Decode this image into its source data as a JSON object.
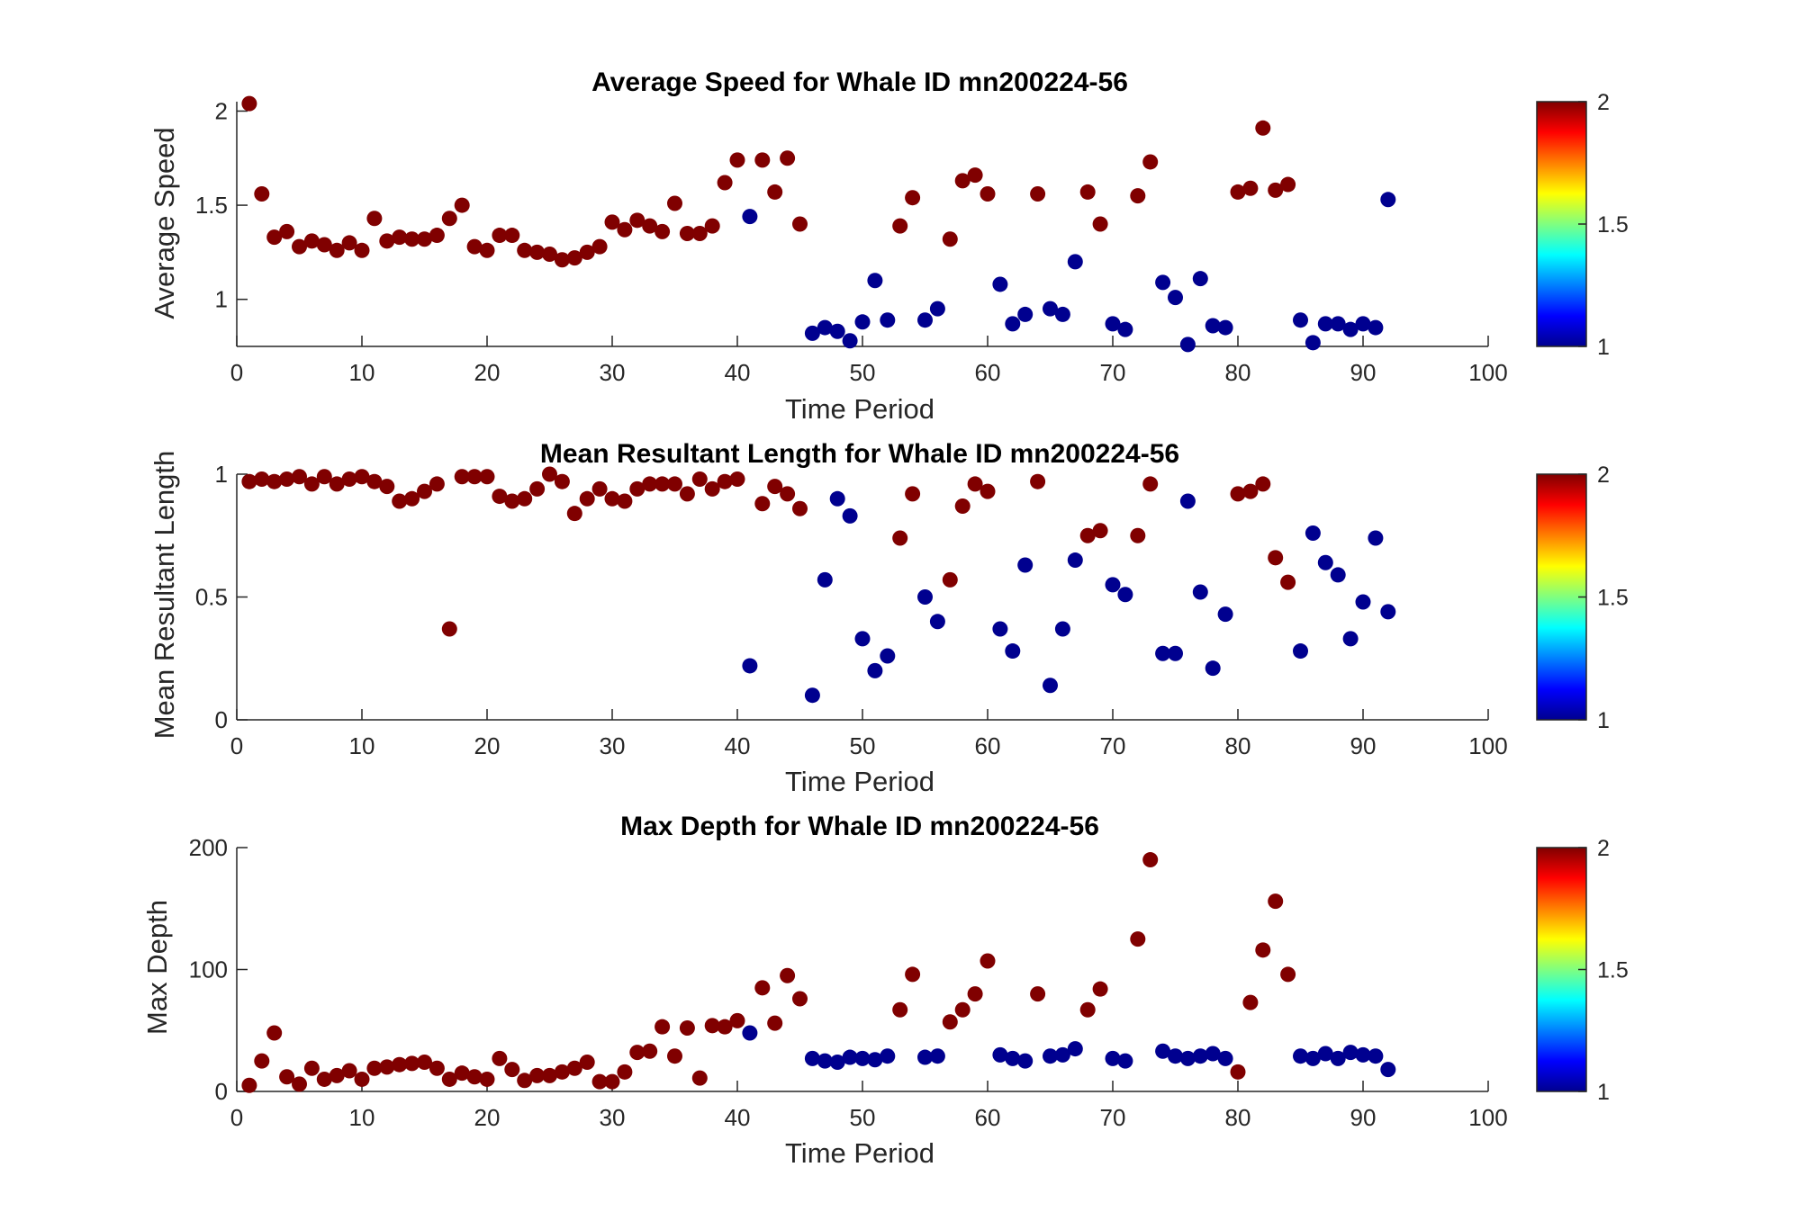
{
  "chart_data": [
    {
      "type": "scatter",
      "title": "Average Speed for Whale ID mn200224-56",
      "xlabel": "Time Period",
      "ylabel": "Average Speed",
      "xlim": [
        0,
        100
      ],
      "ylim": [
        0.75,
        2.05
      ],
      "xticks": [
        0,
        10,
        20,
        30,
        40,
        50,
        60,
        70,
        80,
        90,
        100
      ],
      "yticks": [
        1,
        1.5,
        2
      ],
      "colorbar": {
        "clim": [
          1,
          2
        ],
        "ticks": [
          1,
          1.5,
          2
        ],
        "colormap": "jet"
      },
      "points": [
        [
          1,
          2.04,
          2
        ],
        [
          2,
          1.56,
          2
        ],
        [
          3,
          1.33,
          2
        ],
        [
          4,
          1.36,
          2
        ],
        [
          5,
          1.28,
          2
        ],
        [
          6,
          1.31,
          2
        ],
        [
          7,
          1.29,
          2
        ],
        [
          8,
          1.26,
          2
        ],
        [
          9,
          1.3,
          2
        ],
        [
          10,
          1.26,
          2
        ],
        [
          11,
          1.43,
          2
        ],
        [
          12,
          1.31,
          2
        ],
        [
          13,
          1.33,
          2
        ],
        [
          14,
          1.32,
          2
        ],
        [
          15,
          1.32,
          2
        ],
        [
          16,
          1.34,
          2
        ],
        [
          17,
          1.43,
          2
        ],
        [
          18,
          1.5,
          2
        ],
        [
          19,
          1.28,
          2
        ],
        [
          20,
          1.26,
          2
        ],
        [
          21,
          1.34,
          2
        ],
        [
          22,
          1.34,
          2
        ],
        [
          23,
          1.26,
          2
        ],
        [
          24,
          1.25,
          2
        ],
        [
          25,
          1.24,
          2
        ],
        [
          26,
          1.21,
          2
        ],
        [
          27,
          1.22,
          2
        ],
        [
          28,
          1.25,
          2
        ],
        [
          29,
          1.28,
          2
        ],
        [
          30,
          1.41,
          2
        ],
        [
          31,
          1.37,
          2
        ],
        [
          32,
          1.42,
          2
        ],
        [
          33,
          1.39,
          2
        ],
        [
          34,
          1.36,
          2
        ],
        [
          35,
          1.51,
          2
        ],
        [
          36,
          1.35,
          2
        ],
        [
          37,
          1.35,
          2
        ],
        [
          38,
          1.39,
          2
        ],
        [
          39,
          1.62,
          2
        ],
        [
          40,
          1.74,
          2
        ],
        [
          41,
          1.44,
          1
        ],
        [
          42,
          1.74,
          2
        ],
        [
          43,
          1.57,
          2
        ],
        [
          44,
          1.75,
          2
        ],
        [
          45,
          1.4,
          2
        ],
        [
          46,
          0.82,
          1
        ],
        [
          47,
          0.85,
          1
        ],
        [
          48,
          0.83,
          1
        ],
        [
          49,
          0.78,
          1
        ],
        [
          50,
          0.88,
          1
        ],
        [
          51,
          1.1,
          1
        ],
        [
          52,
          0.89,
          1
        ],
        [
          53,
          1.39,
          2
        ],
        [
          54,
          1.54,
          2
        ],
        [
          55,
          0.89,
          1
        ],
        [
          56,
          0.95,
          1
        ],
        [
          57,
          1.32,
          2
        ],
        [
          58,
          1.63,
          2
        ],
        [
          59,
          1.66,
          2
        ],
        [
          60,
          1.56,
          2
        ],
        [
          61,
          1.08,
          1
        ],
        [
          62,
          0.87,
          1
        ],
        [
          63,
          0.92,
          1
        ],
        [
          64,
          1.56,
          2
        ],
        [
          65,
          0.95,
          1
        ],
        [
          66,
          0.92,
          1
        ],
        [
          67,
          1.2,
          1
        ],
        [
          68,
          1.57,
          2
        ],
        [
          69,
          1.4,
          2
        ],
        [
          70,
          0.87,
          1
        ],
        [
          71,
          0.84,
          1
        ],
        [
          72,
          1.55,
          2
        ],
        [
          73,
          1.73,
          2
        ],
        [
          74,
          1.09,
          1
        ],
        [
          75,
          1.01,
          1
        ],
        [
          76,
          0.76,
          1
        ],
        [
          77,
          1.11,
          1
        ],
        [
          78,
          0.86,
          1
        ],
        [
          79,
          0.85,
          1
        ],
        [
          80,
          1.57,
          2
        ],
        [
          81,
          1.59,
          2
        ],
        [
          82,
          1.91,
          2
        ],
        [
          83,
          1.58,
          2
        ],
        [
          84,
          1.61,
          2
        ],
        [
          85,
          0.89,
          1
        ],
        [
          86,
          0.77,
          1
        ],
        [
          87,
          0.87,
          1
        ],
        [
          88,
          0.87,
          1
        ],
        [
          89,
          0.84,
          1
        ],
        [
          90,
          0.87,
          1
        ],
        [
          91,
          0.85,
          1
        ],
        [
          92,
          1.53,
          1
        ]
      ]
    },
    {
      "type": "scatter",
      "title": "Mean Resultant Length for Whale ID mn200224-56",
      "xlabel": "Time Period",
      "ylabel": "Mean Resultant Length",
      "xlim": [
        0,
        100
      ],
      "ylim": [
        0,
        1
      ],
      "xticks": [
        0,
        10,
        20,
        30,
        40,
        50,
        60,
        70,
        80,
        90,
        100
      ],
      "yticks": [
        0,
        0.5,
        1
      ],
      "colorbar": {
        "clim": [
          1,
          2
        ],
        "ticks": [
          1,
          1.5,
          2
        ],
        "colormap": "jet"
      },
      "points": [
        [
          1,
          0.97,
          2
        ],
        [
          2,
          0.98,
          2
        ],
        [
          3,
          0.97,
          2
        ],
        [
          4,
          0.98,
          2
        ],
        [
          5,
          0.99,
          2
        ],
        [
          6,
          0.96,
          2
        ],
        [
          7,
          0.99,
          2
        ],
        [
          8,
          0.96,
          2
        ],
        [
          9,
          0.98,
          2
        ],
        [
          10,
          0.99,
          2
        ],
        [
          11,
          0.97,
          2
        ],
        [
          12,
          0.95,
          2
        ],
        [
          13,
          0.89,
          2
        ],
        [
          14,
          0.9,
          2
        ],
        [
          15,
          0.93,
          2
        ],
        [
          16,
          0.96,
          2
        ],
        [
          17,
          0.37,
          2
        ],
        [
          18,
          0.99,
          2
        ],
        [
          19,
          0.99,
          2
        ],
        [
          20,
          0.99,
          2
        ],
        [
          21,
          0.91,
          2
        ],
        [
          22,
          0.89,
          2
        ],
        [
          23,
          0.9,
          2
        ],
        [
          24,
          0.94,
          2
        ],
        [
          25,
          1.0,
          2
        ],
        [
          26,
          0.97,
          2
        ],
        [
          27,
          0.84,
          2
        ],
        [
          28,
          0.9,
          2
        ],
        [
          29,
          0.94,
          2
        ],
        [
          30,
          0.9,
          2
        ],
        [
          31,
          0.89,
          2
        ],
        [
          32,
          0.94,
          2
        ],
        [
          33,
          0.96,
          2
        ],
        [
          34,
          0.96,
          2
        ],
        [
          35,
          0.96,
          2
        ],
        [
          36,
          0.92,
          2
        ],
        [
          37,
          0.98,
          2
        ],
        [
          38,
          0.94,
          2
        ],
        [
          39,
          0.97,
          2
        ],
        [
          40,
          0.98,
          2
        ],
        [
          41,
          0.22,
          1
        ],
        [
          42,
          0.88,
          2
        ],
        [
          43,
          0.95,
          2
        ],
        [
          44,
          0.92,
          2
        ],
        [
          45,
          0.86,
          2
        ],
        [
          46,
          0.1,
          1
        ],
        [
          47,
          0.57,
          1
        ],
        [
          48,
          0.9,
          1
        ],
        [
          49,
          0.83,
          1
        ],
        [
          50,
          0.33,
          1
        ],
        [
          51,
          0.2,
          1
        ],
        [
          52,
          0.26,
          1
        ],
        [
          53,
          0.74,
          2
        ],
        [
          54,
          0.92,
          2
        ],
        [
          55,
          0.5,
          1
        ],
        [
          56,
          0.4,
          1
        ],
        [
          57,
          0.57,
          2
        ],
        [
          58,
          0.87,
          2
        ],
        [
          59,
          0.96,
          2
        ],
        [
          60,
          0.93,
          2
        ],
        [
          61,
          0.37,
          1
        ],
        [
          62,
          0.28,
          1
        ],
        [
          63,
          0.63,
          1
        ],
        [
          64,
          0.97,
          2
        ],
        [
          65,
          0.14,
          1
        ],
        [
          66,
          0.37,
          1
        ],
        [
          67,
          0.65,
          1
        ],
        [
          68,
          0.75,
          2
        ],
        [
          69,
          0.77,
          2
        ],
        [
          70,
          0.55,
          1
        ],
        [
          71,
          0.51,
          1
        ],
        [
          72,
          0.75,
          2
        ],
        [
          73,
          0.96,
          2
        ],
        [
          74,
          0.27,
          1
        ],
        [
          75,
          0.27,
          1
        ],
        [
          76,
          0.89,
          1
        ],
        [
          77,
          0.52,
          1
        ],
        [
          78,
          0.21,
          1
        ],
        [
          79,
          0.43,
          1
        ],
        [
          80,
          0.92,
          2
        ],
        [
          81,
          0.93,
          2
        ],
        [
          82,
          0.96,
          2
        ],
        [
          83,
          0.66,
          2
        ],
        [
          84,
          0.56,
          2
        ],
        [
          85,
          0.28,
          1
        ],
        [
          86,
          0.76,
          1
        ],
        [
          87,
          0.64,
          1
        ],
        [
          88,
          0.59,
          1
        ],
        [
          89,
          0.33,
          1
        ],
        [
          90,
          0.48,
          1
        ],
        [
          91,
          0.74,
          1
        ],
        [
          92,
          0.44,
          1
        ]
      ]
    },
    {
      "type": "scatter",
      "title": "Max Depth for Whale ID mn200224-56",
      "xlabel": "Time Period",
      "ylabel": "Max Depth",
      "xlim": [
        0,
        100
      ],
      "ylim": [
        0,
        200
      ],
      "xticks": [
        0,
        10,
        20,
        30,
        40,
        50,
        60,
        70,
        80,
        90,
        100
      ],
      "yticks": [
        0,
        100,
        200
      ],
      "colorbar": {
        "clim": [
          1,
          2
        ],
        "ticks": [
          1,
          1.5,
          2
        ],
        "colormap": "jet"
      },
      "points": [
        [
          1,
          5,
          2
        ],
        [
          2,
          25,
          2
        ],
        [
          3,
          48,
          2
        ],
        [
          4,
          12,
          2
        ],
        [
          5,
          6,
          2
        ],
        [
          6,
          19,
          2
        ],
        [
          7,
          10,
          2
        ],
        [
          8,
          13,
          2
        ],
        [
          9,
          17,
          2
        ],
        [
          10,
          10,
          2
        ],
        [
          11,
          19,
          2
        ],
        [
          12,
          20,
          2
        ],
        [
          13,
          22,
          2
        ],
        [
          14,
          23,
          2
        ],
        [
          15,
          24,
          2
        ],
        [
          16,
          19,
          2
        ],
        [
          17,
          10,
          2
        ],
        [
          18,
          15,
          2
        ],
        [
          19,
          12,
          2
        ],
        [
          20,
          10,
          2
        ],
        [
          21,
          27,
          2
        ],
        [
          22,
          18,
          2
        ],
        [
          23,
          9,
          2
        ],
        [
          24,
          13,
          2
        ],
        [
          25,
          13,
          2
        ],
        [
          26,
          16,
          2
        ],
        [
          27,
          19,
          2
        ],
        [
          28,
          24,
          2
        ],
        [
          29,
          8,
          2
        ],
        [
          30,
          8,
          2
        ],
        [
          31,
          16,
          2
        ],
        [
          32,
          32,
          2
        ],
        [
          33,
          33,
          2
        ],
        [
          34,
          53,
          2
        ],
        [
          35,
          29,
          2
        ],
        [
          36,
          52,
          2
        ],
        [
          37,
          11,
          2
        ],
        [
          38,
          54,
          2
        ],
        [
          39,
          53,
          2
        ],
        [
          40,
          58,
          2
        ],
        [
          41,
          48,
          1
        ],
        [
          42,
          85,
          2
        ],
        [
          43,
          56,
          2
        ],
        [
          44,
          95,
          2
        ],
        [
          45,
          76,
          2
        ],
        [
          46,
          27,
          1
        ],
        [
          47,
          25,
          1
        ],
        [
          48,
          24,
          1
        ],
        [
          49,
          28,
          1
        ],
        [
          50,
          27,
          1
        ],
        [
          51,
          26,
          1
        ],
        [
          52,
          29,
          1
        ],
        [
          53,
          67,
          2
        ],
        [
          54,
          96,
          2
        ],
        [
          55,
          28,
          1
        ],
        [
          56,
          29,
          1
        ],
        [
          57,
          57,
          2
        ],
        [
          58,
          67,
          2
        ],
        [
          59,
          80,
          2
        ],
        [
          60,
          107,
          2
        ],
        [
          61,
          30,
          1
        ],
        [
          62,
          27,
          1
        ],
        [
          63,
          25,
          1
        ],
        [
          64,
          80,
          2
        ],
        [
          65,
          29,
          1
        ],
        [
          66,
          30,
          1
        ],
        [
          67,
          35,
          1
        ],
        [
          68,
          67,
          2
        ],
        [
          69,
          84,
          2
        ],
        [
          70,
          27,
          1
        ],
        [
          71,
          25,
          1
        ],
        [
          72,
          125,
          2
        ],
        [
          73,
          190,
          2
        ],
        [
          74,
          33,
          1
        ],
        [
          75,
          29,
          1
        ],
        [
          76,
          27,
          1
        ],
        [
          77,
          29,
          1
        ],
        [
          78,
          31,
          1
        ],
        [
          79,
          27,
          1
        ],
        [
          80,
          16,
          2
        ],
        [
          81,
          73,
          2
        ],
        [
          82,
          116,
          2
        ],
        [
          83,
          156,
          2
        ],
        [
          84,
          96,
          2
        ],
        [
          85,
          29,
          1
        ],
        [
          86,
          27,
          1
        ],
        [
          87,
          31,
          1
        ],
        [
          88,
          27,
          1
        ],
        [
          89,
          32,
          1
        ],
        [
          90,
          30,
          1
        ],
        [
          91,
          29,
          1
        ],
        [
          92,
          18,
          1
        ]
      ]
    }
  ],
  "colors": {
    "category_1": "#00008F",
    "category_2": "#800000"
  }
}
